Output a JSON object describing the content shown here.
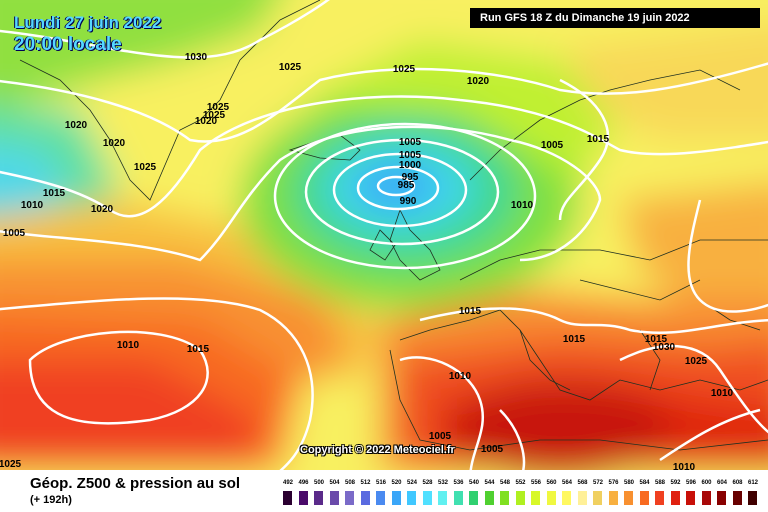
{
  "header": {
    "date": "Lundi 27 juin 2022",
    "time": "20:00 locale",
    "run": "Run GFS 18 Z du Dimanche 19 juin 2022"
  },
  "copyright": "Copyright © 2022 Meteociel.fr",
  "footer": {
    "title": "Géop. Z500 & pression au sol",
    "subtitle": "(+ 192h)"
  },
  "isobar_labels": [
    "1030",
    "1025",
    "1025",
    "1020",
    "1025",
    "1025",
    "1020",
    "1020",
    "1025",
    "1015",
    "1010",
    "1020",
    "1005",
    "1005",
    "1000",
    "995",
    "985",
    "990",
    "1010",
    "1005",
    "1005",
    "1020",
    "1015",
    "1015",
    "1015",
    "1015",
    "1030",
    "1025",
    "1010",
    "1015",
    "1010",
    "1010",
    "1005",
    "1005",
    "1010",
    "1025"
  ],
  "legend": {
    "labels": [
      "492",
      "496",
      "500",
      "504",
      "508",
      "512",
      "516",
      "520",
      "524",
      "528",
      "532",
      "536",
      "540",
      "544",
      "548",
      "552",
      "556",
      "560",
      "564",
      "568",
      "572",
      "576",
      "580",
      "584",
      "588",
      "592",
      "596",
      "600",
      "604",
      "608",
      "612"
    ],
    "colors": [
      "#2a0030",
      "#4a0a6a",
      "#5a2a8a",
      "#6a4aaa",
      "#7a6ac8",
      "#5a6ae0",
      "#4a8af0",
      "#3aa6f8",
      "#40c8ff",
      "#50e0ff",
      "#60f0f0",
      "#40e0b0",
      "#30d070",
      "#50d030",
      "#80e020",
      "#b0f020",
      "#d8f828",
      "#f0f840",
      "#fff860",
      "#fff098",
      "#f0d060",
      "#f8b040",
      "#f89030",
      "#f86a20",
      "#f04020",
      "#e02010",
      "#c81008",
      "#a80808",
      "#880000",
      "#680000",
      "#400000"
    ]
  }
}
